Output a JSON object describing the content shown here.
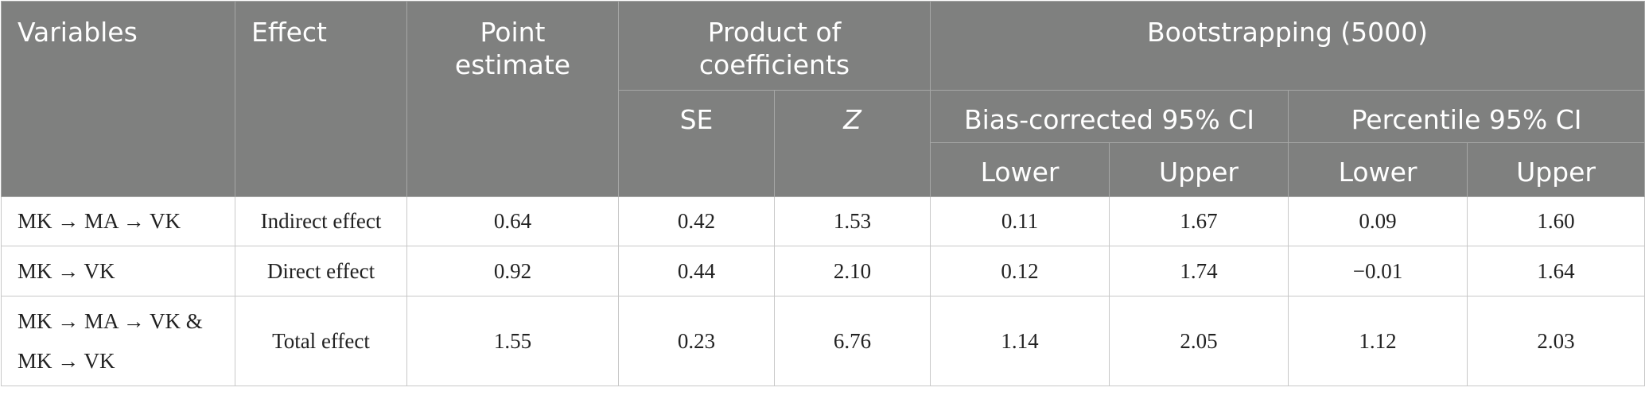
{
  "table": {
    "headers": {
      "variables": "Variables",
      "effect": "Effect",
      "point_estimate_line1": "Point",
      "point_estimate_line2": "estimate",
      "product_line1": "Product of",
      "product_line2": "coefficients",
      "bootstrapping": "Bootstrapping (5000)",
      "se": "SE",
      "z": "Z",
      "bias_corrected": "Bias-corrected 95% CI",
      "percentile": "Percentile 95% CI",
      "lower": "Lower",
      "upper": "Upper"
    },
    "rows": [
      {
        "variables": [
          "MK → MA → VK"
        ],
        "effect": "Indirect effect",
        "point_estimate": "0.64",
        "se": "0.42",
        "z": "1.53",
        "bc_lower": "0.11",
        "bc_upper": "1.67",
        "pc_lower": "0.09",
        "pc_upper": "1.60"
      },
      {
        "variables": [
          "MK → VK"
        ],
        "effect": "Direct effect",
        "point_estimate": "0.92",
        "se": "0.44",
        "z": "2.10",
        "bc_lower": "0.12",
        "bc_upper": "1.74",
        "pc_lower": "−0.01",
        "pc_upper": "1.64"
      },
      {
        "variables": [
          "MK → MA → VK &",
          "MK → VK"
        ],
        "effect": "Total effect",
        "point_estimate": "1.55",
        "se": "0.23",
        "z": "6.76",
        "bc_lower": "1.14",
        "bc_upper": "2.05",
        "pc_lower": "1.12",
        "pc_upper": "2.03"
      }
    ],
    "colors": {
      "header_background": "#7f807f",
      "header_text": "#ffffff",
      "body_text": "#222222",
      "grid_line": "#c8c8c8"
    }
  }
}
